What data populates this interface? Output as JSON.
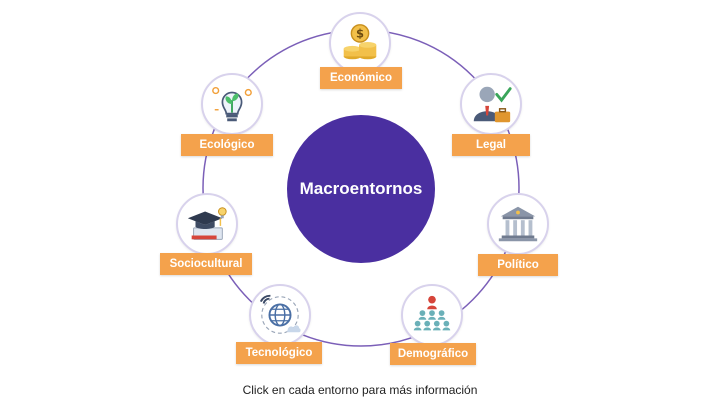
{
  "center": {
    "label": "Macroentornos"
  },
  "nodes": [
    {
      "key": "economico",
      "label": "Económico",
      "icon": "coins-icon"
    },
    {
      "key": "legal",
      "label": "Legal",
      "icon": "lawyer-icon"
    },
    {
      "key": "politico",
      "label": "Político",
      "icon": "government-building-icon"
    },
    {
      "key": "demografico",
      "label": "Demográfico",
      "icon": "population-icon"
    },
    {
      "key": "tecnologico",
      "label": "Tecnológico",
      "icon": "network-globe-icon"
    },
    {
      "key": "sociocultural",
      "label": "Sociocultural",
      "icon": "graduation-cap-icon"
    },
    {
      "key": "ecologico",
      "label": "Ecológico",
      "icon": "plant-bulb-icon"
    }
  ],
  "footer": {
    "text": "Click en cada entorno para más información"
  },
  "colors": {
    "center": "#4a2fa0",
    "label": "#f4a24c",
    "ring": "#7b5fb8"
  }
}
